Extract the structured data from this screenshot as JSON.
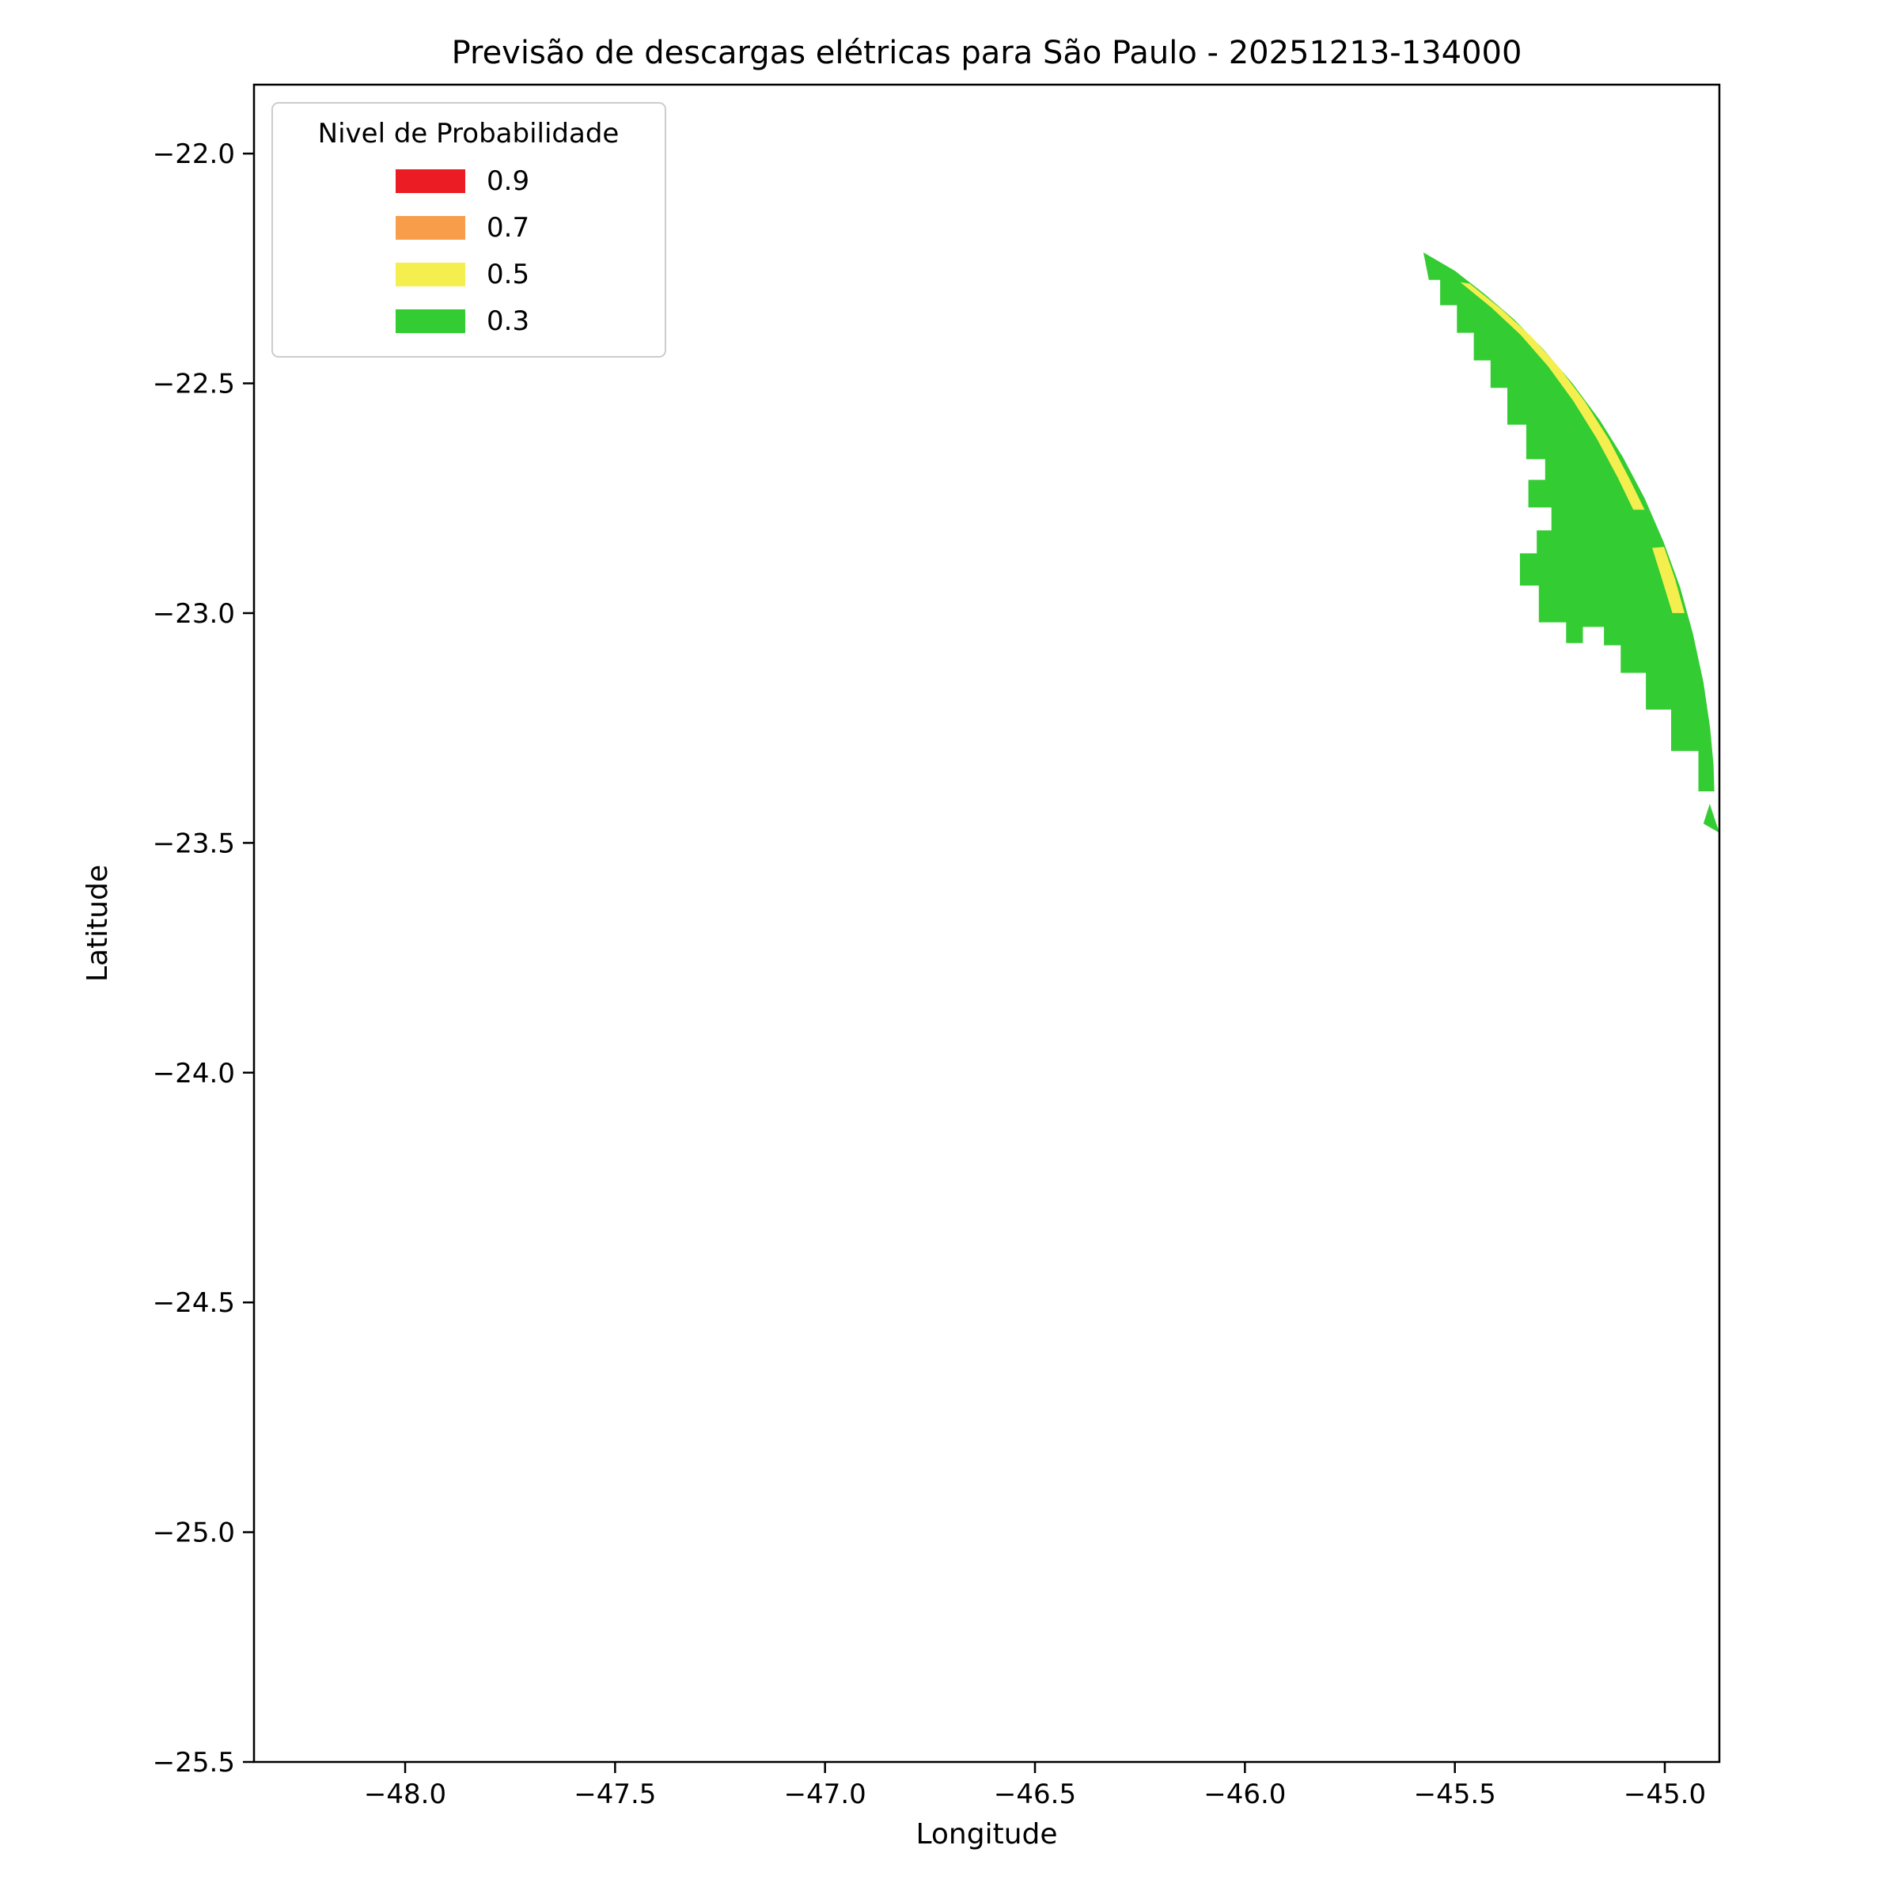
{
  "figure": {
    "background": "#ffffff"
  },
  "chart_data": {
    "type": "contour",
    "title": "Previsão de descargas elétricas para São Paulo - 20251213-134000",
    "xlabel": "Longitude",
    "ylabel": "Latitude",
    "xlim": [
      -48.36,
      -44.87
    ],
    "ylim": [
      -25.5,
      -21.85
    ],
    "xticks": [
      -48.0,
      -47.5,
      -47.0,
      -46.5,
      -46.0,
      -45.5,
      -45.0
    ],
    "yticks": [
      -22.0,
      -22.5,
      -23.0,
      -23.5,
      -24.0,
      -24.5,
      -25.0,
      -25.5
    ],
    "grid": false,
    "legend": {
      "title": "Nivel de Probabilidade",
      "position": "upper left",
      "entries": [
        {
          "label": "0.9",
          "level": 0.9,
          "color": "#ec1c24"
        },
        {
          "label": "0.7",
          "level": 0.7,
          "color": "#f89e4b"
        },
        {
          "label": "0.5",
          "level": 0.5,
          "color": "#f4ef4e"
        },
        {
          "label": "0.3",
          "level": 0.3,
          "color": "#33cc33"
        }
      ]
    },
    "regions": [
      {
        "name": "prob-0.3-main-area",
        "level": 0.3,
        "color": "#33cc33",
        "points": [
          [
            -45.575,
            -22.215
          ],
          [
            -45.5,
            -22.255
          ],
          [
            -45.43,
            -22.305
          ],
          [
            -45.36,
            -22.36
          ],
          [
            -45.29,
            -22.425
          ],
          [
            -45.22,
            -22.5
          ],
          [
            -45.155,
            -22.58
          ],
          [
            -45.1,
            -22.66
          ],
          [
            -45.048,
            -22.75
          ],
          [
            -45.003,
            -22.845
          ],
          [
            -44.963,
            -22.945
          ],
          [
            -44.933,
            -23.045
          ],
          [
            -44.908,
            -23.15
          ],
          [
            -44.892,
            -23.25
          ],
          [
            -44.884,
            -23.33
          ],
          [
            -44.882,
            -23.388
          ],
          [
            -44.92,
            -23.388
          ],
          [
            -44.92,
            -23.3
          ],
          [
            -44.985,
            -23.3
          ],
          [
            -44.985,
            -23.21
          ],
          [
            -45.045,
            -23.21
          ],
          [
            -45.045,
            -23.13
          ],
          [
            -45.105,
            -23.13
          ],
          [
            -45.105,
            -23.07
          ],
          [
            -45.145,
            -23.07
          ],
          [
            -45.145,
            -23.03
          ],
          [
            -45.195,
            -23.03
          ],
          [
            -45.195,
            -23.065
          ],
          [
            -45.235,
            -23.065
          ],
          [
            -45.235,
            -23.02
          ],
          [
            -45.3,
            -23.02
          ],
          [
            -45.3,
            -22.94
          ],
          [
            -45.345,
            -22.94
          ],
          [
            -45.345,
            -22.87
          ],
          [
            -45.305,
            -22.87
          ],
          [
            -45.305,
            -22.82
          ],
          [
            -45.27,
            -22.82
          ],
          [
            -45.27,
            -22.77
          ],
          [
            -45.325,
            -22.77
          ],
          [
            -45.325,
            -22.71
          ],
          [
            -45.285,
            -22.71
          ],
          [
            -45.285,
            -22.665
          ],
          [
            -45.33,
            -22.665
          ],
          [
            -45.33,
            -22.59
          ],
          [
            -45.375,
            -22.59
          ],
          [
            -45.375,
            -22.51
          ],
          [
            -45.415,
            -22.51
          ],
          [
            -45.415,
            -22.45
          ],
          [
            -45.455,
            -22.45
          ],
          [
            -45.455,
            -22.39
          ],
          [
            -45.495,
            -22.39
          ],
          [
            -45.495,
            -22.33
          ],
          [
            -45.535,
            -22.33
          ],
          [
            -45.535,
            -22.275
          ],
          [
            -45.562,
            -22.275
          ]
        ]
      },
      {
        "name": "prob-0.5-band-upper",
        "level": 0.5,
        "color": "#f4ef4e",
        "points": [
          [
            -45.465,
            -22.283
          ],
          [
            -45.39,
            -22.338
          ],
          [
            -45.318,
            -22.398
          ],
          [
            -45.252,
            -22.465
          ],
          [
            -45.19,
            -22.54
          ],
          [
            -45.133,
            -22.622
          ],
          [
            -45.083,
            -22.71
          ],
          [
            -45.048,
            -22.775
          ],
          [
            -45.075,
            -22.775
          ],
          [
            -45.112,
            -22.705
          ],
          [
            -45.162,
            -22.62
          ],
          [
            -45.218,
            -22.538
          ],
          [
            -45.278,
            -22.463
          ],
          [
            -45.343,
            -22.395
          ],
          [
            -45.413,
            -22.335
          ],
          [
            -45.487,
            -22.28
          ]
        ]
      },
      {
        "name": "prob-0.5-band-lower",
        "level": 0.5,
        "color": "#f4ef4e",
        "points": [
          [
            -45.002,
            -22.856
          ],
          [
            -44.976,
            -22.925
          ],
          [
            -44.953,
            -23.0
          ],
          [
            -44.982,
            -23.0
          ],
          [
            -45.006,
            -22.928
          ],
          [
            -45.03,
            -22.858
          ]
        ]
      },
      {
        "name": "prob-0.3-detached-area",
        "level": 0.3,
        "color": "#33cc33",
        "points": [
          [
            -44.893,
            -23.415
          ],
          [
            -44.87,
            -23.478
          ],
          [
            -44.908,
            -23.458
          ]
        ]
      }
    ]
  }
}
